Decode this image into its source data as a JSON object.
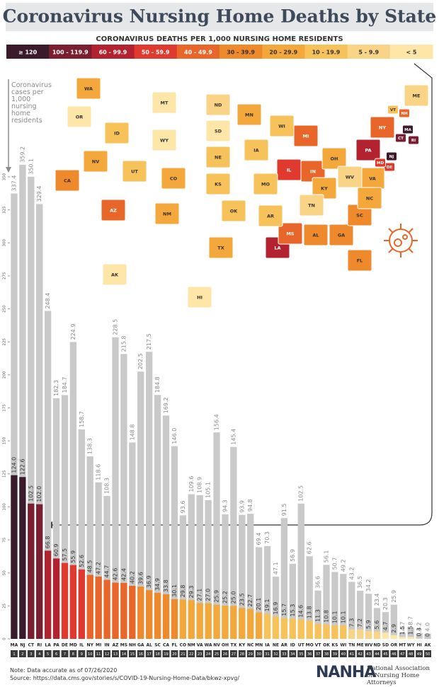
{
  "chart_data": {
    "type": "bar",
    "title": "Coronavirus Nursing Home Deaths by State",
    "subtitle": "CORONAVIRUS DEATHS PER 1,000 NURSING HOME RESIDENTS",
    "y_label": "Coronavirus cases per 1,000 nursing home residents",
    "legend_bins": [
      {
        "label": "≥ 120",
        "min": 120,
        "color": "#3b1a2c"
      },
      {
        "label": "100 - 119.9",
        "min": 100,
        "color": "#7b1f30"
      },
      {
        "label": "60 - 99.9",
        "min": 60,
        "color": "#b3222f"
      },
      {
        "label": "50 - 59.9",
        "min": 50,
        "color": "#e0392e"
      },
      {
        "label": "40 - 49.9",
        "min": 40,
        "color": "#e8662a"
      },
      {
        "label": "30 - 39.9",
        "min": 30,
        "color": "#ee8a2c"
      },
      {
        "label": "20 - 29.9",
        "min": 20,
        "color": "#f4a73a"
      },
      {
        "label": "10 - 19.9",
        "min": 10,
        "color": "#f7c25a"
      },
      {
        "label": "5 - 9.9",
        "min": 5,
        "color": "#f9d487"
      },
      {
        "label": "< 5",
        "min": 0,
        "color": "#fde6a8"
      }
    ],
    "categories": [
      "MA",
      "NJ",
      "CT",
      "RI",
      "LA",
      "PA",
      "DE",
      "MD",
      "IL",
      "NY",
      "MI",
      "IN",
      "AZ",
      "MS",
      "NH",
      "GA",
      "AL",
      "SC",
      "CA",
      "FL",
      "CO",
      "NM",
      "VA",
      "WA",
      "NV",
      "OH",
      "TX",
      "KY",
      "NC",
      "MN",
      "IA",
      "NE",
      "AR",
      "ID",
      "UT",
      "MO",
      "VT",
      "OK",
      "KS",
      "WI",
      "TN",
      "ME",
      "WV",
      "ND",
      "SD",
      "OR",
      "MT",
      "WY",
      "HI",
      "AK"
    ],
    "ranks": [
      1,
      2,
      3,
      4,
      5,
      6,
      7,
      8,
      9,
      10,
      11,
      12,
      13,
      14,
      15,
      16,
      17,
      18,
      19,
      20,
      21,
      22,
      23,
      24,
      25,
      26,
      27,
      28,
      29,
      30,
      31,
      32,
      33,
      34,
      35,
      36,
      37,
      38,
      39,
      40,
      41,
      42,
      43,
      44,
      45,
      46,
      47,
      48,
      49,
      50
    ],
    "series": [
      {
        "name": "cases",
        "color": "#c9c9c9",
        "values": [
          337.4,
          359.2,
          350.1,
          329.4,
          248.4,
          182.3,
          184.7,
          224.9,
          158.7,
          138.3,
          118.6,
          108.3,
          228.5,
          215.8,
          148.8,
          202.5,
          217.5,
          184.8,
          169.2,
          146.0,
          93.6,
          109.6,
          108.9,
          105.1,
          156.4,
          94.3,
          145.4,
          93.9,
          94.8,
          69.4,
          70.3,
          47.1,
          91.5,
          56.9,
          102.5,
          62.6,
          36.6,
          56.1,
          50.7,
          49.2,
          43.2,
          36.5,
          34.2,
          23.4,
          20.3,
          25.9,
          4.7,
          8.7,
          4.2,
          4.0
        ],
        "value_labels": [
          "337.4",
          "359.2",
          "350.1",
          "329.4",
          "248.4",
          "182.3",
          "184.7",
          "224.9",
          "158.7",
          "138.3",
          "118.6",
          "108.3",
          "228.5",
          "215.8",
          "148.8",
          "202.5",
          "217.5",
          "184.8",
          "169.2",
          "146.0",
          "93.6",
          "109.6",
          "108.9",
          "105.1",
          "156.4",
          "94.3",
          "145.4",
          "93.9",
          "94.8",
          "69.4",
          "70.3",
          "47.1",
          "91.5",
          "56.9",
          "102.5",
          "62.6",
          "36.6",
          "56.1",
          "50.7",
          "49.2",
          "43.2",
          "36.5",
          "34.2",
          "23.4",
          "20.3",
          "25.9",
          "4.7",
          "8.7",
          "4.2",
          "4.0"
        ]
      },
      {
        "name": "deaths",
        "values": [
          124.0,
          122.6,
          102.5,
          102.0,
          66.8,
          60.9,
          57.5,
          55.9,
          52.6,
          48.5,
          47.2,
          44.7,
          42.6,
          42.4,
          40.2,
          39.6,
          36.9,
          34.9,
          33.8,
          30.1,
          29.8,
          29.3,
          27.1,
          27.0,
          25.9,
          25.2,
          25.0,
          23.5,
          22.7,
          20.1,
          19.1,
          16.9,
          15.7,
          15.3,
          14.6,
          13.8,
          11.3,
          10.8,
          10.1,
          10.1,
          7.3,
          7.2,
          5.9,
          5.6,
          4.7,
          2.9,
          1.5,
          1.5,
          0.3,
          0
        ],
        "value_labels": [
          "124.0",
          "122.6",
          "102.5",
          "102.0",
          "66.8",
          "60.9",
          "57.5",
          "55.9",
          "52.6",
          "48.5",
          "47.2",
          "44.7",
          "42.6",
          "42.4",
          "40.2",
          "39.6",
          "36.9",
          "34.9",
          "33.8",
          "30.1",
          "29.8",
          "29.3",
          "27.1",
          "27.0",
          "25.9",
          "25.2",
          "25.0",
          "23.5",
          "22.7",
          "20.1",
          "19.1",
          "16.9",
          "15.7",
          "15.3",
          "14.6",
          "13.8",
          "11.3",
          "10.8",
          "10.1",
          "10.1",
          "7.3",
          "7.2",
          "5.9",
          "5.6",
          "4.7",
          "2.9",
          "1.5",
          "1.5",
          "0.3",
          "0"
        ]
      }
    ],
    "ylim": [
      0,
      360
    ],
    "yticks": [
      0,
      25,
      50,
      75,
      100,
      125,
      150,
      175,
      200,
      225,
      250,
      275,
      300,
      325,
      350
    ],
    "note": "Note: Data accurate as of 07/26/2020",
    "source": "Source: https://data.cms.gov/stories/s/COVID-19-Nursing-Home-Data/bkwz-xpvg/",
    "logo": "NANHA",
    "organization": "National Association of Nursing Home Attorneys"
  }
}
